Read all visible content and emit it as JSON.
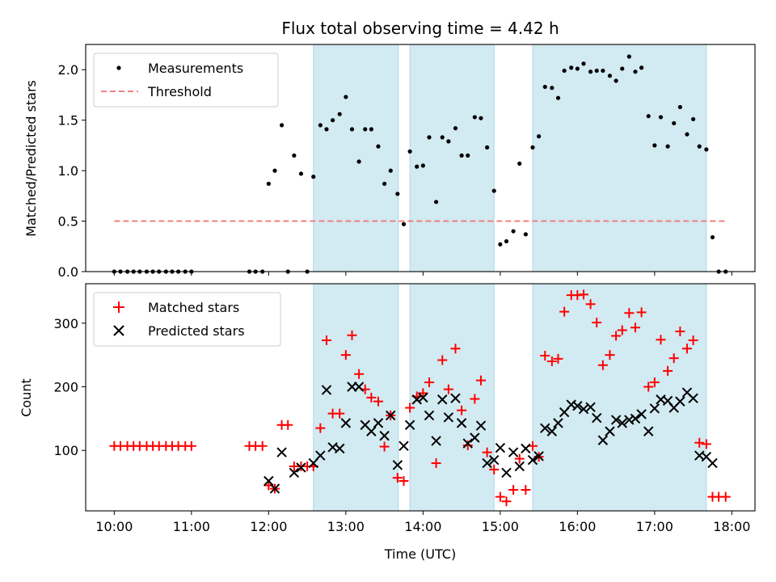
{
  "chart_data": [
    {
      "type": "scatter",
      "title": "Flux total observing time = 4.42 h",
      "xlabel": "",
      "ylabel": "Matched/Predicted stars",
      "xlim": [
        9.63,
        18.3
      ],
      "ylim": [
        0,
        2.25
      ],
      "yticks": [
        0.0,
        0.5,
        1.0,
        1.5,
        2.0
      ],
      "ytick_labels": [
        "0.0",
        "0.5",
        "1.0",
        "1.5",
        "2.0"
      ],
      "shaded_intervals": [
        [
          12.58,
          13.68
        ],
        [
          13.83,
          14.92
        ],
        [
          15.42,
          17.67
        ]
      ],
      "shaded_color": "#add8e6",
      "legend": {
        "placement": "top-left",
        "entries": [
          "Measurements",
          "Threshold"
        ]
      },
      "threshold": {
        "name": "Threshold",
        "value": 0.5,
        "x_range": [
          10.0,
          17.93
        ],
        "color": "#f08080",
        "style": "dashed"
      },
      "series": [
        {
          "name": "Measurements",
          "color": "#000000",
          "marker": "dot",
          "points": [
            [
              10.0,
              0.0
            ],
            [
              10.08,
              0.0
            ],
            [
              10.17,
              0.0
            ],
            [
              10.25,
              0.0
            ],
            [
              10.33,
              0.0
            ],
            [
              10.42,
              0.0
            ],
            [
              10.5,
              0.0
            ],
            [
              10.58,
              0.0
            ],
            [
              10.67,
              0.0
            ],
            [
              10.75,
              0.0
            ],
            [
              10.83,
              0.0
            ],
            [
              10.92,
              0.0
            ],
            [
              11.0,
              0.0
            ],
            [
              11.75,
              0.0
            ],
            [
              11.83,
              0.0
            ],
            [
              11.92,
              0.0
            ],
            [
              12.0,
              0.87
            ],
            [
              12.08,
              1.0
            ],
            [
              12.17,
              1.45
            ],
            [
              12.25,
              0.0
            ],
            [
              12.33,
              1.15
            ],
            [
              12.42,
              0.97
            ],
            [
              12.5,
              0.0
            ],
            [
              12.58,
              0.94
            ],
            [
              12.67,
              1.45
            ],
            [
              12.75,
              1.41
            ],
            [
              12.83,
              1.5
            ],
            [
              12.92,
              1.56
            ],
            [
              13.0,
              1.73
            ],
            [
              13.08,
              1.41
            ],
            [
              13.17,
              1.09
            ],
            [
              13.25,
              1.41
            ],
            [
              13.33,
              1.41
            ],
            [
              13.42,
              1.24
            ],
            [
              13.5,
              0.87
            ],
            [
              13.58,
              1.0
            ],
            [
              13.67,
              0.77
            ],
            [
              13.75,
              0.47
            ],
            [
              13.83,
              1.19
            ],
            [
              13.92,
              1.04
            ],
            [
              14.0,
              1.05
            ],
            [
              14.08,
              1.33
            ],
            [
              14.17,
              0.69
            ],
            [
              14.25,
              1.33
            ],
            [
              14.33,
              1.29
            ],
            [
              14.42,
              1.42
            ],
            [
              14.5,
              1.15
            ],
            [
              14.58,
              1.15
            ],
            [
              14.67,
              1.53
            ],
            [
              14.75,
              1.52
            ],
            [
              14.83,
              1.23
            ],
            [
              14.92,
              0.8
            ],
            [
              15.0,
              0.27
            ],
            [
              15.08,
              0.3
            ],
            [
              15.17,
              0.4
            ],
            [
              15.25,
              1.07
            ],
            [
              15.33,
              0.37
            ],
            [
              15.42,
              1.23
            ],
            [
              15.5,
              1.34
            ],
            [
              15.58,
              1.83
            ],
            [
              15.67,
              1.82
            ],
            [
              15.75,
              1.72
            ],
            [
              15.83,
              1.99
            ],
            [
              15.92,
              2.02
            ],
            [
              16.0,
              2.01
            ],
            [
              16.08,
              2.06
            ],
            [
              16.17,
              1.98
            ],
            [
              16.25,
              1.99
            ],
            [
              16.33,
              1.99
            ],
            [
              16.42,
              1.94
            ],
            [
              16.5,
              1.89
            ],
            [
              16.58,
              2.01
            ],
            [
              16.67,
              2.13
            ],
            [
              16.75,
              1.98
            ],
            [
              16.83,
              2.02
            ],
            [
              16.92,
              1.54
            ],
            [
              17.0,
              1.25
            ],
            [
              17.08,
              1.53
            ],
            [
              17.17,
              1.24
            ],
            [
              17.25,
              1.47
            ],
            [
              17.33,
              1.63
            ],
            [
              17.42,
              1.36
            ],
            [
              17.5,
              1.51
            ],
            [
              17.58,
              1.24
            ],
            [
              17.67,
              1.21
            ],
            [
              17.75,
              0.34
            ],
            [
              17.83,
              0.0
            ],
            [
              17.92,
              0.0
            ]
          ]
        }
      ]
    },
    {
      "type": "scatter",
      "title": "",
      "xlabel": "Time (UTC)",
      "ylabel": "Count",
      "xlim": [
        9.63,
        18.3
      ],
      "ylim": [
        5,
        362
      ],
      "yticks": [
        100,
        200,
        300
      ],
      "ytick_labels": [
        "100",
        "200",
        "300"
      ],
      "xticks": [
        10,
        11,
        12,
        13,
        14,
        15,
        16,
        17,
        18
      ],
      "xtick_labels": [
        "10:00",
        "11:00",
        "12:00",
        "13:00",
        "14:00",
        "15:00",
        "16:00",
        "17:00",
        "18:00"
      ],
      "shaded_intervals": [
        [
          12.58,
          13.68
        ],
        [
          13.83,
          14.92
        ],
        [
          15.42,
          17.67
        ]
      ],
      "shaded_color": "#add8e6",
      "legend": {
        "placement": "top-left",
        "entries": [
          "Matched stars",
          "Predicted stars"
        ]
      },
      "series": [
        {
          "name": "Matched stars",
          "color": "#ff0000",
          "marker": "plus",
          "points": [
            [
              10.0,
              107
            ],
            [
              10.08,
              107
            ],
            [
              10.17,
              107
            ],
            [
              10.25,
              107
            ],
            [
              10.33,
              107
            ],
            [
              10.42,
              107
            ],
            [
              10.5,
              107
            ],
            [
              10.58,
              107
            ],
            [
              10.67,
              107
            ],
            [
              10.75,
              107
            ],
            [
              10.83,
              107
            ],
            [
              10.92,
              107
            ],
            [
              11.0,
              107
            ],
            [
              11.75,
              107
            ],
            [
              11.83,
              107
            ],
            [
              11.92,
              107
            ],
            [
              12.0,
              45
            ],
            [
              12.08,
              40
            ],
            [
              12.17,
              140
            ],
            [
              12.25,
              140
            ],
            [
              12.33,
              75
            ],
            [
              12.42,
              75
            ],
            [
              12.5,
              75
            ],
            [
              12.58,
              75
            ],
            [
              12.67,
              135
            ],
            [
              12.75,
              273
            ],
            [
              12.83,
              158
            ],
            [
              12.92,
              158
            ],
            [
              13.0,
              250
            ],
            [
              13.08,
              281
            ],
            [
              13.17,
              220
            ],
            [
              13.25,
              196
            ],
            [
              13.33,
              183
            ],
            [
              13.42,
              177
            ],
            [
              13.5,
              106
            ],
            [
              13.58,
              155
            ],
            [
              13.67,
              57
            ],
            [
              13.75,
              52
            ],
            [
              13.83,
              167
            ],
            [
              13.92,
              185
            ],
            [
              14.0,
              190
            ],
            [
              14.08,
              207
            ],
            [
              14.17,
              80
            ],
            [
              14.25,
              242
            ],
            [
              14.33,
              196
            ],
            [
              14.42,
              260
            ],
            [
              14.5,
              163
            ],
            [
              14.58,
              108
            ],
            [
              14.67,
              181
            ],
            [
              14.75,
              210
            ],
            [
              14.83,
              97
            ],
            [
              14.92,
              70
            ],
            [
              15.0,
              27
            ],
            [
              15.08,
              20
            ],
            [
              15.17,
              38
            ],
            [
              15.25,
              87
            ],
            [
              15.33,
              38
            ],
            [
              15.42,
              107
            ],
            [
              15.5,
              90
            ],
            [
              15.58,
              249
            ],
            [
              15.67,
              240
            ],
            [
              15.75,
              244
            ],
            [
              15.83,
              318
            ],
            [
              15.92,
              344
            ],
            [
              16.0,
              344
            ],
            [
              16.08,
              345
            ],
            [
              16.17,
              330
            ],
            [
              16.25,
              301
            ],
            [
              16.33,
              234
            ],
            [
              16.42,
              250
            ],
            [
              16.5,
              280
            ],
            [
              16.58,
              289
            ],
            [
              16.67,
              316
            ],
            [
              16.75,
              293
            ],
            [
              16.83,
              317
            ],
            [
              16.92,
              200
            ],
            [
              17.0,
              207
            ],
            [
              17.08,
              274
            ],
            [
              17.17,
              225
            ],
            [
              17.25,
              245
            ],
            [
              17.33,
              287
            ],
            [
              17.42,
              260
            ],
            [
              17.5,
              273
            ],
            [
              17.58,
              112
            ],
            [
              17.67,
              110
            ],
            [
              17.75,
              27
            ],
            [
              17.83,
              27
            ],
            [
              17.92,
              27
            ]
          ]
        },
        {
          "name": "Predicted stars",
          "color": "#000000",
          "marker": "x",
          "points": [
            [
              12.0,
              52
            ],
            [
              12.08,
              40
            ],
            [
              12.17,
              97
            ],
            [
              12.33,
              65
            ],
            [
              12.42,
              73
            ],
            [
              12.58,
              80
            ],
            [
              12.67,
              92
            ],
            [
              12.75,
              195
            ],
            [
              12.83,
              105
            ],
            [
              12.92,
              103
            ],
            [
              13.0,
              143
            ],
            [
              13.08,
              200
            ],
            [
              13.17,
              200
            ],
            [
              13.25,
              140
            ],
            [
              13.33,
              130
            ],
            [
              13.42,
              143
            ],
            [
              13.5,
              123
            ],
            [
              13.58,
              155
            ],
            [
              13.67,
              77
            ],
            [
              13.75,
              107
            ],
            [
              13.83,
              140
            ],
            [
              13.92,
              180
            ],
            [
              14.0,
              183
            ],
            [
              14.08,
              155
            ],
            [
              14.17,
              115
            ],
            [
              14.25,
              180
            ],
            [
              14.33,
              152
            ],
            [
              14.42,
              182
            ],
            [
              14.5,
              143
            ],
            [
              14.58,
              111
            ],
            [
              14.67,
              120
            ],
            [
              14.75,
              139
            ],
            [
              14.83,
              80
            ],
            [
              14.92,
              85
            ],
            [
              15.0,
              104
            ],
            [
              15.08,
              65
            ],
            [
              15.17,
              97
            ],
            [
              15.25,
              75
            ],
            [
              15.33,
              103
            ],
            [
              15.42,
              85
            ],
            [
              15.5,
              91
            ],
            [
              15.58,
              135
            ],
            [
              15.67,
              130
            ],
            [
              15.75,
              143
            ],
            [
              15.83,
              160
            ],
            [
              15.92,
              172
            ],
            [
              16.0,
              170
            ],
            [
              16.08,
              165
            ],
            [
              16.17,
              168
            ],
            [
              16.25,
              151
            ],
            [
              16.33,
              116
            ],
            [
              16.42,
              130
            ],
            [
              16.5,
              148
            ],
            [
              16.58,
              143
            ],
            [
              16.67,
              148
            ],
            [
              16.75,
              150
            ],
            [
              16.83,
              157
            ],
            [
              16.92,
              130
            ],
            [
              17.0,
              166
            ],
            [
              17.08,
              180
            ],
            [
              17.17,
              178
            ],
            [
              17.25,
              167
            ],
            [
              17.33,
              177
            ],
            [
              17.42,
              191
            ],
            [
              17.5,
              182
            ],
            [
              17.58,
              92
            ],
            [
              17.67,
              90
            ],
            [
              17.75,
              80
            ]
          ]
        }
      ]
    }
  ]
}
